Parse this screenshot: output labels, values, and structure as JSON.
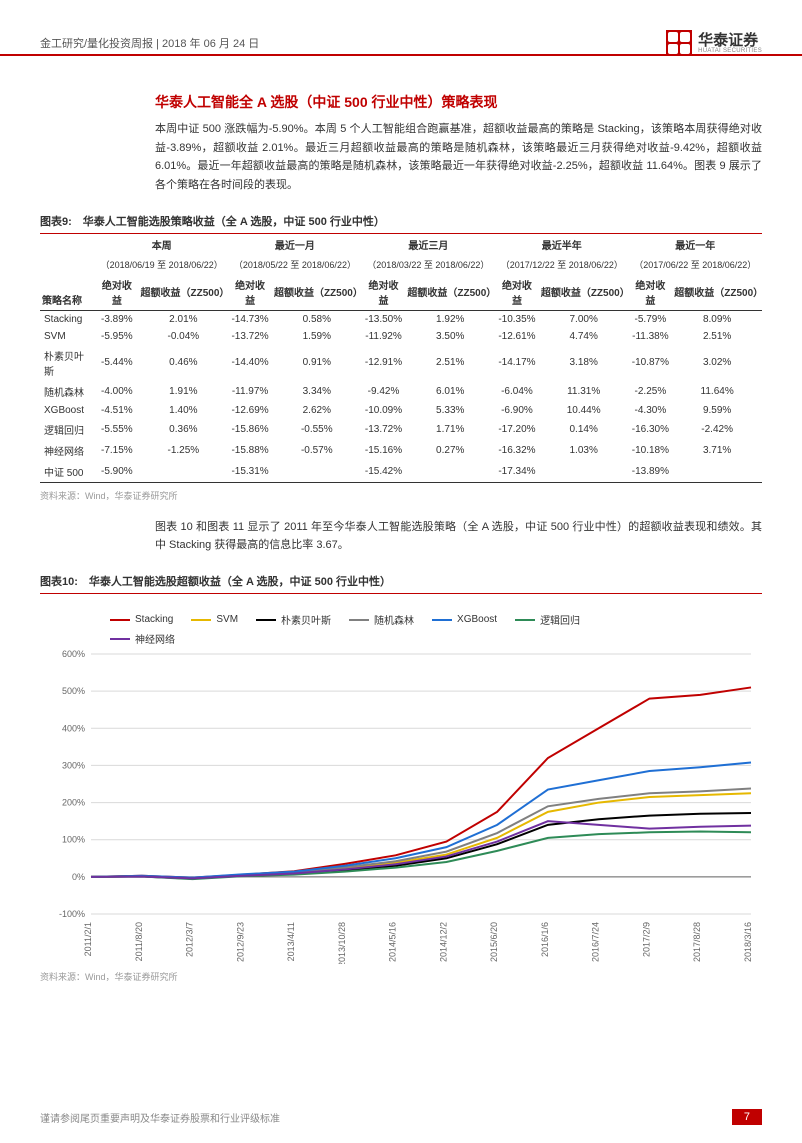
{
  "header": {
    "breadcrumb": "金工研究/量化投资周报 | 2018 年 06 月 24 日",
    "logo_cn": "华泰证券",
    "logo_en": "HUATAI SECURITIES"
  },
  "section": {
    "title": "华泰人工智能全 A 选股（中证 500 行业中性）策略表现",
    "para": "本周中证 500 涨跌幅为-5.90%。本周 5 个人工智能组合跑赢基准，超额收益最高的策略是 Stacking，该策略本周获得绝对收益-3.89%，超额收益 2.01%。最近三月超额收益最高的策略是随机森林，该策略最近三月获得绝对收益-9.42%，超额收益 6.01%。最近一年超额收益最高的策略是随机森林，该策略最近一年获得绝对收益-2.25%，超额收益 11.64%。图表 9 展示了各个策略在各时间段的表现。"
  },
  "table9": {
    "title": "图表9:　华泰人工智能选股策略收益（全 A 选股，中证 500 行业中性）",
    "periods": [
      {
        "name": "本周",
        "range": "（2018/06/19 至 2018/06/22）"
      },
      {
        "name": "最近一月",
        "range": "（2018/05/22 至 2018/06/22）"
      },
      {
        "name": "最近三月",
        "range": "（2018/03/22 至 2018/06/22）"
      },
      {
        "name": "最近半年",
        "range": "（2017/12/22 至 2018/06/22）"
      },
      {
        "name": "最近一年",
        "range": "（2017/06/22 至 2018/06/22）"
      }
    ],
    "col_strategy": "策略名称",
    "col_abs": "绝对收益",
    "col_exc": "超额收益（ZZ500）",
    "rows": [
      {
        "n": "Stacking",
        "v": [
          "-3.89%",
          "2.01%",
          "-14.73%",
          "0.58%",
          "-13.50%",
          "1.92%",
          "-10.35%",
          "7.00%",
          "-5.79%",
          "8.09%"
        ]
      },
      {
        "n": "SVM",
        "v": [
          "-5.95%",
          "-0.04%",
          "-13.72%",
          "1.59%",
          "-11.92%",
          "3.50%",
          "-12.61%",
          "4.74%",
          "-11.38%",
          "2.51%"
        ]
      },
      {
        "n": "朴素贝叶斯",
        "v": [
          "-5.44%",
          "0.46%",
          "-14.40%",
          "0.91%",
          "-12.91%",
          "2.51%",
          "-14.17%",
          "3.18%",
          "-10.87%",
          "3.02%"
        ]
      },
      {
        "n": "随机森林",
        "v": [
          "-4.00%",
          "1.91%",
          "-11.97%",
          "3.34%",
          "-9.42%",
          "6.01%",
          "-6.04%",
          "11.31%",
          "-2.25%",
          "11.64%"
        ]
      },
      {
        "n": "XGBoost",
        "v": [
          "-4.51%",
          "1.40%",
          "-12.69%",
          "2.62%",
          "-10.09%",
          "5.33%",
          "-6.90%",
          "10.44%",
          "-4.30%",
          "9.59%"
        ]
      },
      {
        "n": "逻辑回归",
        "v": [
          "-5.55%",
          "0.36%",
          "-15.86%",
          "-0.55%",
          "-13.72%",
          "1.71%",
          "-17.20%",
          "0.14%",
          "-16.30%",
          "-2.42%"
        ]
      },
      {
        "n": "神经网络",
        "v": [
          "-7.15%",
          "-1.25%",
          "-15.88%",
          "-0.57%",
          "-15.16%",
          "0.27%",
          "-16.32%",
          "1.03%",
          "-10.18%",
          "3.71%"
        ]
      },
      {
        "n": "中证 500",
        "v": [
          "-5.90%",
          "",
          "-15.31%",
          "",
          "-15.42%",
          "",
          "-17.34%",
          "",
          "-13.89%",
          ""
        ]
      }
    ],
    "source": "资料来源：Wind，华泰证券研究所"
  },
  "mid_para": "图表 10 和图表 11 显示了 2011 年至今华泰人工智能选股策略（全 A 选股，中证 500 行业中性）的超额收益表现和绩效。其中 Stacking 获得最高的信息比率 3.67。",
  "chart10": {
    "title": "图表10:　华泰人工智能选股超额收益（全 A 选股，中证 500 行业中性）",
    "ylim": [
      -100,
      600
    ],
    "ytick_step": 100,
    "y_labels": [
      "-100%",
      "0%",
      "100%",
      "200%",
      "300%",
      "400%",
      "500%",
      "600%"
    ],
    "x_labels": [
      "2011/2/1",
      "2011/8/20",
      "2012/3/7",
      "2012/9/23",
      "2013/4/11",
      "2013/10/28",
      "2014/5/16",
      "2014/12/2",
      "2015/6/20",
      "2016/1/6",
      "2016/7/24",
      "2017/2/9",
      "2017/8/28",
      "2018/3/16"
    ],
    "background_color": "#ffffff",
    "grid_color": "#d9d9d9",
    "axis_color": "#666666",
    "series": [
      {
        "name": "Stacking",
        "color": "#c00000",
        "data": [
          0,
          3,
          -2,
          6,
          15,
          35,
          58,
          95,
          175,
          320,
          400,
          480,
          490,
          510
        ]
      },
      {
        "name": "SVM",
        "color": "#e6b800",
        "data": [
          0,
          2,
          -4,
          4,
          10,
          22,
          38,
          60,
          105,
          175,
          200,
          215,
          220,
          225
        ]
      },
      {
        "name": "朴素贝叶斯",
        "color": "#000000",
        "data": [
          0,
          1,
          -5,
          3,
          8,
          18,
          30,
          50,
          88,
          140,
          155,
          165,
          170,
          172
        ]
      },
      {
        "name": "随机森林",
        "color": "#808080",
        "data": [
          0,
          2,
          -3,
          5,
          12,
          26,
          42,
          68,
          118,
          190,
          210,
          225,
          230,
          238
        ]
      },
      {
        "name": "XGBoost",
        "color": "#1f6fd4",
        "data": [
          0,
          3,
          -2,
          7,
          14,
          30,
          50,
          80,
          140,
          235,
          260,
          285,
          295,
          308
        ]
      },
      {
        "name": "逻辑回归",
        "color": "#2e8b57",
        "data": [
          0,
          1,
          -6,
          2,
          6,
          14,
          25,
          40,
          70,
          105,
          115,
          120,
          122,
          120
        ]
      },
      {
        "name": "神经网络",
        "color": "#7030a0",
        "data": [
          0,
          1,
          -4,
          3,
          9,
          20,
          34,
          55,
          95,
          150,
          140,
          130,
          135,
          138
        ]
      }
    ],
    "source": "资料来源：Wind，华泰证券研究所"
  },
  "footer": {
    "disclaimer": "谨请参阅尾页重要声明及华泰证券股票和行业评级标准",
    "page": "7"
  }
}
